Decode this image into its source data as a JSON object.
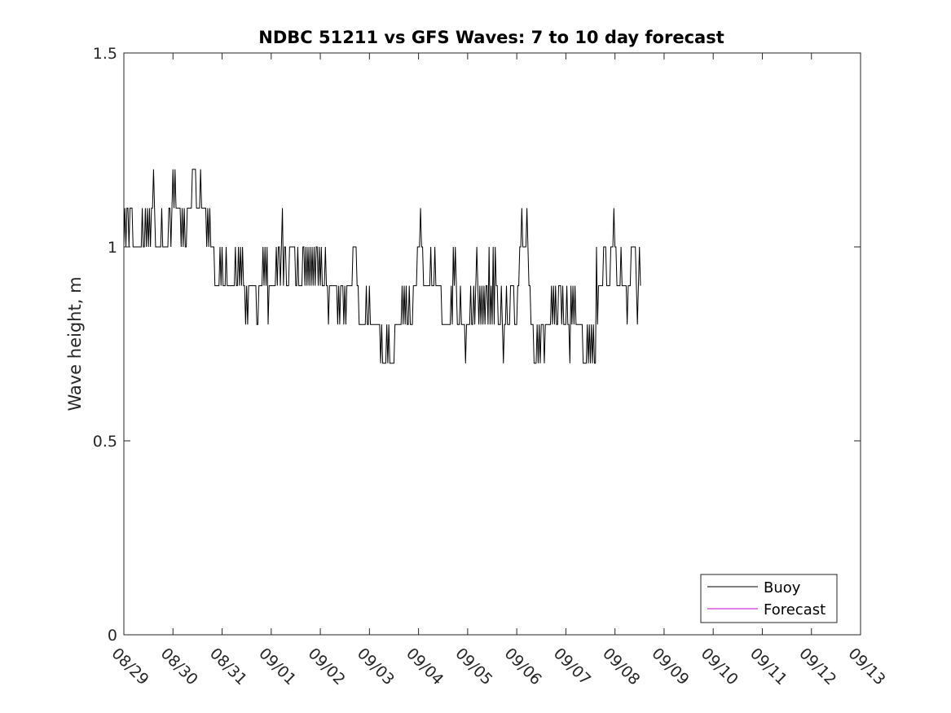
{
  "chart_data": {
    "type": "line",
    "title": "NDBC 51211 vs GFS Waves: 7 to 10 day forecast",
    "xlabel": "",
    "ylabel": "Wave height, m",
    "ylim": [
      0,
      1.5
    ],
    "xlim_days": [
      0,
      15
    ],
    "y_ticks": [
      {
        "value": 0,
        "label": "0"
      },
      {
        "value": 0.5,
        "label": "0.5"
      },
      {
        "value": 1,
        "label": "1"
      },
      {
        "value": 1.5,
        "label": "1.5"
      }
    ],
    "x_ticks": [
      {
        "day": 0,
        "label": "08/29"
      },
      {
        "day": 1,
        "label": "08/30"
      },
      {
        "day": 2,
        "label": "08/31"
      },
      {
        "day": 3,
        "label": "09/01"
      },
      {
        "day": 4,
        "label": "09/02"
      },
      {
        "day": 5,
        "label": "09/03"
      },
      {
        "day": 6,
        "label": "09/04"
      },
      {
        "day": 7,
        "label": "09/05"
      },
      {
        "day": 8,
        "label": "09/06"
      },
      {
        "day": 9,
        "label": "09/07"
      },
      {
        "day": 10,
        "label": "09/08"
      },
      {
        "day": 11,
        "label": "09/09"
      },
      {
        "day": 12,
        "label": "09/10"
      },
      {
        "day": 13,
        "label": "09/11"
      },
      {
        "day": 14,
        "label": "09/12"
      },
      {
        "day": 15,
        "label": "09/13"
      }
    ],
    "legend": {
      "position": "bottom-right",
      "entries": [
        {
          "name": "Buoy",
          "color": "#000000"
        },
        {
          "name": "Forecast",
          "color": "#cc00cc"
        }
      ]
    },
    "series": [
      {
        "name": "Buoy",
        "color": "#000000",
        "x_start_day": 0,
        "x_step_day": 0.02083,
        "values": [
          1.0,
          1.1,
          1.0,
          1.1,
          1.1,
          1.0,
          1.1,
          1.1,
          1.1,
          1.0,
          1.0,
          1.0,
          1.0,
          1.0,
          1.0,
          1.0,
          1.0,
          1.0,
          1.1,
          1.0,
          1.0,
          1.1,
          1.0,
          1.1,
          1.0,
          1.1,
          1.0,
          1.1,
          1.1,
          1.2,
          1.1,
          1.0,
          1.0,
          1.0,
          1.0,
          1.0,
          1.0,
          1.1,
          1.0,
          1.0,
          1.0,
          1.0,
          1.0,
          1.0,
          1.1,
          1.1,
          1.0,
          1.1,
          1.2,
          1.1,
          1.2,
          1.1,
          1.1,
          1.1,
          1.1,
          1.1,
          1.0,
          1.1,
          1.0,
          1.1,
          1.0,
          1.0,
          1.1,
          1.1,
          1.1,
          1.1,
          1.1,
          1.2,
          1.2,
          1.2,
          1.2,
          1.1,
          1.1,
          1.1,
          1.1,
          1.2,
          1.1,
          1.1,
          1.1,
          1.1,
          1.1,
          1.0,
          1.1,
          1.0,
          1.1,
          1.0,
          1.0,
          1.0,
          1.0,
          0.9,
          0.9,
          0.9,
          0.9,
          0.9,
          1.0,
          0.9,
          1.0,
          0.9,
          0.9,
          0.9,
          1.0,
          0.9,
          0.9,
          0.9,
          0.9,
          0.9,
          0.9,
          0.9,
          0.9,
          1.0,
          0.9,
          0.9,
          1.0,
          0.9,
          1.0,
          0.9,
          1.0,
          0.9,
          0.9,
          0.8,
          0.9,
          0.8,
          0.9,
          0.9,
          0.9,
          0.9,
          0.9,
          0.9,
          0.9,
          0.9,
          0.8,
          0.8,
          0.9,
          0.9,
          0.9,
          0.9,
          1.0,
          0.9,
          1.0,
          0.9,
          1.0,
          0.8,
          0.9,
          0.9,
          0.9,
          0.9,
          0.9,
          0.9,
          0.9,
          1.0,
          0.9,
          1.0,
          1.0,
          0.9,
          1.0,
          1.1,
          0.9,
          1.0,
          1.0,
          0.9,
          0.9,
          0.9,
          1.0,
          1.0,
          1.0,
          1.0,
          1.0,
          1.0,
          0.9,
          0.9,
          1.0,
          0.9,
          0.9,
          0.9,
          0.9,
          1.0,
          1.0,
          0.9,
          1.0,
          0.9,
          1.0,
          0.9,
          1.0,
          0.9,
          1.0,
          0.9,
          1.0,
          0.9,
          1.0,
          1.0,
          0.9,
          1.0,
          0.9,
          1.0,
          0.9,
          0.9,
          0.9,
          1.0,
          0.9,
          0.9,
          0.8,
          0.9,
          0.9,
          0.9,
          0.9,
          0.9,
          0.9,
          0.9,
          0.9,
          0.8,
          0.9,
          0.8,
          0.9,
          0.9,
          0.9,
          0.8,
          0.9,
          0.8,
          0.9,
          0.9,
          0.9,
          0.9,
          0.9,
          0.9,
          1.0,
          1.0,
          1.0,
          1.0,
          0.9,
          0.9,
          0.8,
          0.8,
          0.8,
          0.8,
          0.8,
          0.8,
          0.8,
          0.9,
          0.8,
          0.8,
          0.9,
          0.8,
          0.8,
          0.8,
          0.8,
          0.8,
          0.8,
          0.8,
          0.8,
          0.8,
          0.8,
          0.7,
          0.8,
          0.7,
          0.7,
          0.7,
          0.7,
          0.8,
          0.7,
          0.8,
          0.7,
          0.7,
          0.7,
          0.7,
          0.7,
          0.8,
          0.8,
          0.8,
          0.8,
          0.8,
          0.8,
          0.8,
          0.9,
          0.8,
          0.9,
          0.8,
          0.9,
          0.8,
          0.8,
          0.9,
          0.8,
          0.8,
          0.8,
          0.9,
          0.9,
          0.9,
          0.9,
          1.0,
          1.0,
          1.0,
          1.1,
          1.0,
          1.0,
          0.9,
          0.9,
          0.9,
          0.9,
          0.9,
          0.9,
          0.9,
          1.0,
          0.9,
          0.9,
          0.9,
          1.0,
          0.9,
          0.9,
          0.9,
          0.9,
          0.9,
          0.9,
          0.8,
          0.8,
          0.8,
          0.8,
          0.8,
          0.8,
          0.8,
          0.8,
          0.8,
          0.9,
          0.8,
          1.0,
          0.9,
          1.0,
          0.9,
          0.8,
          0.8,
          0.8,
          0.9,
          0.8,
          0.8,
          0.8,
          0.8,
          0.7,
          0.8,
          0.8,
          0.8,
          0.8,
          0.9,
          0.8,
          0.8,
          0.9,
          0.8,
          0.9,
          1.0,
          0.9,
          0.8,
          0.9,
          0.8,
          0.9,
          0.8,
          0.9,
          0.8,
          0.9,
          0.9,
          0.8,
          1.0,
          0.8,
          0.9,
          0.8,
          1.0,
          0.8,
          1.0,
          0.9,
          0.9,
          0.8,
          0.8,
          0.8,
          0.9,
          0.8,
          0.7,
          0.8,
          0.8,
          0.9,
          0.8,
          0.8,
          0.8,
          0.9,
          0.9,
          0.9,
          0.9,
          0.8,
          0.8,
          0.8,
          0.9,
          0.9,
          1.0,
          1.0,
          1.1,
          1.0,
          1.0,
          1.0,
          1.0,
          1.1,
          1.0,
          0.9,
          0.9,
          0.8,
          0.8,
          0.8,
          0.7,
          0.7,
          0.7,
          0.8,
          0.7,
          0.8,
          0.7,
          0.8,
          0.8,
          0.8,
          0.7,
          0.8,
          0.8,
          0.8,
          0.8,
          0.8,
          0.8,
          0.9,
          0.8,
          0.9,
          0.8,
          0.9,
          0.8,
          0.8,
          0.9,
          0.9,
          0.9,
          0.8,
          0.9,
          0.8,
          0.8,
          0.8,
          0.9,
          0.8,
          0.8,
          0.7,
          0.9,
          0.8,
          0.9,
          0.8,
          0.9,
          0.8,
          0.8,
          0.8,
          0.8,
          0.8,
          0.8,
          0.8,
          0.7,
          0.7,
          0.7,
          0.7,
          0.8,
          0.7,
          0.8,
          0.7,
          0.8,
          0.7,
          0.8,
          0.7,
          0.7,
          1.0,
          0.8,
          0.9,
          0.9,
          0.9,
          0.9,
          0.9,
          1.0,
          1.0,
          1.0,
          0.9,
          0.9,
          0.9,
          0.9,
          1.0,
          1.0,
          1.0,
          1.1,
          1.0,
          1.0,
          0.9,
          0.9,
          0.9,
          0.9,
          1.0,
          0.9,
          0.9,
          0.9,
          0.9,
          0.9,
          0.8,
          0.9,
          0.9,
          0.9,
          1.0,
          1.0,
          1.0,
          1.0,
          1.0,
          0.9,
          0.8,
          0.9,
          1.0,
          0.9
        ]
      },
      {
        "name": "Forecast",
        "color": "#cc00cc",
        "values": []
      }
    ]
  }
}
